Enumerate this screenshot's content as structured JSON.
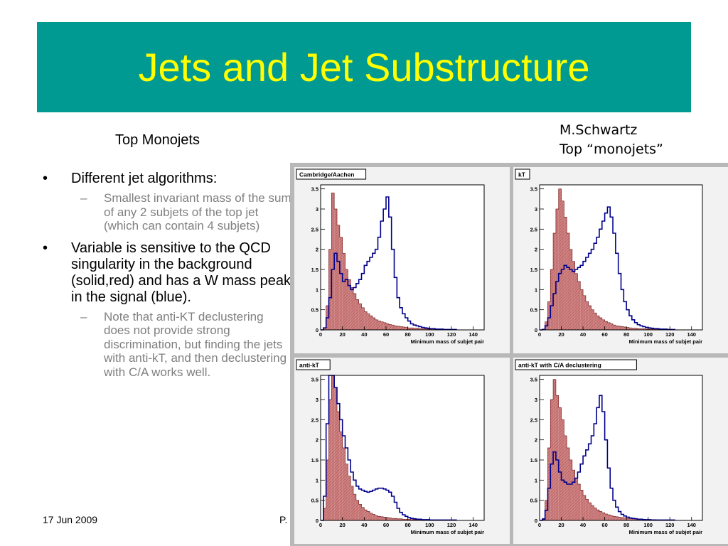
{
  "slide": {
    "title": "Jets and Jet Substructure",
    "subtitle": "Top Monojets",
    "credit_line1": "M.Schwartz",
    "credit_line2": "Top “monojets”",
    "footer_date": "17 Jun 2009",
    "footer_page": "P.",
    "colors": {
      "title_bg": "#009a92",
      "title_text": "#ffff00",
      "background_fill": "#cd7f7f",
      "signal_line": "#00008b"
    }
  },
  "bullets": {
    "b1": "Different jet algorithms:",
    "b1_sub": "Smallest invariant mass of the sum of any 2 subjets of the top jet (which can contain 4 subjets)",
    "b2": "Variable is sensitive to the QCD singularity in the background (solid,red) and has a W mass peak in the signal (blue).",
    "b2_sub": "Note that anti-KT declustering does not provide strong discrimination, but finding the jets with anti-kT, and then declustering with C/A works well.",
    "bullet_char": "•",
    "dash_char": "–"
  },
  "chart_data": [
    {
      "type": "histogram",
      "label": "Cambridge/Aachen",
      "xlabel": "Minimum mass of subjet pair",
      "xlim": [
        0,
        150
      ],
      "ylim": [
        0,
        3.6
      ],
      "xticks": [
        0,
        20,
        40,
        60,
        80,
        100,
        120,
        140
      ],
      "yticks": [
        0,
        0.5,
        1,
        1.5,
        2,
        2.5,
        3,
        3.5
      ],
      "bin_width": 2.5,
      "background": [
        0,
        0.05,
        0.6,
        2.0,
        3.4,
        3.0,
        2.6,
        2.3,
        1.9,
        1.5,
        1.25,
        1.05,
        0.9,
        0.75,
        0.65,
        0.55,
        0.45,
        0.4,
        0.35,
        0.3,
        0.25,
        0.22,
        0.2,
        0.18,
        0.15,
        0.13,
        0.12,
        0.1,
        0.09,
        0.08,
        0.07,
        0.06,
        0.05,
        0.05,
        0.04,
        0.04,
        0.03,
        0.03,
        0.03,
        0.02,
        0.02,
        0.02,
        0.02,
        0.01,
        0.01,
        0.01,
        0.01,
        0.01,
        0.01,
        0.01
      ],
      "signal": [
        0,
        0.05,
        0.3,
        0.8,
        1.5,
        1.9,
        1.7,
        1.4,
        1.2,
        1.25,
        1.1,
        1.0,
        1.05,
        1.15,
        1.25,
        1.4,
        1.6,
        1.7,
        1.8,
        1.9,
        2.0,
        2.3,
        2.7,
        3.0,
        3.3,
        2.8,
        2.0,
        1.3,
        0.8,
        0.55,
        0.4,
        0.3,
        0.22,
        0.15,
        0.12,
        0.1,
        0.08,
        0.06,
        0.05,
        0.04,
        0.03,
        0.03,
        0.02,
        0.02,
        0.02,
        0.01,
        0.01,
        0.01,
        0.01,
        0.01
      ]
    },
    {
      "type": "histogram",
      "label": "kT",
      "xlabel": "Minimum mass of subjet pair",
      "xlim": [
        0,
        150
      ],
      "ylim": [
        0,
        3.6
      ],
      "xticks": [
        0,
        20,
        40,
        60,
        80,
        100,
        120,
        140
      ],
      "yticks": [
        0,
        0.5,
        1,
        1.5,
        2,
        2.5,
        3,
        3.5
      ],
      "bin_width": 2.5,
      "background": [
        0,
        0.02,
        0.2,
        0.7,
        1.5,
        2.4,
        3.0,
        3.5,
        3.2,
        2.8,
        2.4,
        2.0,
        1.7,
        1.4,
        1.2,
        1.0,
        0.85,
        0.7,
        0.6,
        0.5,
        0.42,
        0.35,
        0.3,
        0.25,
        0.21,
        0.18,
        0.15,
        0.12,
        0.1,
        0.09,
        0.08,
        0.07,
        0.06,
        0.05,
        0.04,
        0.04,
        0.03,
        0.03,
        0.03,
        0.02,
        0.02,
        0.02,
        0.02,
        0.01,
        0.01,
        0.01,
        0.01,
        0.01,
        0.01,
        0.01
      ],
      "signal": [
        0,
        0.01,
        0.1,
        0.3,
        0.6,
        0.9,
        1.2,
        1.4,
        1.5,
        1.6,
        1.55,
        1.5,
        1.45,
        1.5,
        1.55,
        1.6,
        1.7,
        1.8,
        1.9,
        2.0,
        2.15,
        2.3,
        2.5,
        2.7,
        2.9,
        3.05,
        2.8,
        2.4,
        1.9,
        1.4,
        1.0,
        0.7,
        0.5,
        0.35,
        0.25,
        0.18,
        0.13,
        0.1,
        0.08,
        0.06,
        0.05,
        0.04,
        0.03,
        0.03,
        0.02,
        0.02,
        0.02,
        0.01,
        0.01,
        0.01
      ]
    },
    {
      "type": "histogram",
      "label": "anti-kT",
      "xlabel": "Minimum mass of subjet pair",
      "xlim": [
        0,
        150
      ],
      "ylim": [
        0,
        3.6
      ],
      "xticks": [
        0,
        20,
        40,
        60,
        80,
        100,
        120,
        140
      ],
      "yticks": [
        0,
        0.5,
        1,
        1.5,
        2,
        2.5,
        3,
        3.5
      ],
      "bin_width": 2.5,
      "background": [
        0,
        0.3,
        1.5,
        3.0,
        3.9,
        3.3,
        2.7,
        2.2,
        1.8,
        1.4,
        1.1,
        0.85,
        0.65,
        0.5,
        0.4,
        0.32,
        0.26,
        0.22,
        0.18,
        0.15,
        0.12,
        0.1,
        0.09,
        0.08,
        0.07,
        0.06,
        0.05,
        0.05,
        0.04,
        0.04,
        0.03,
        0.03,
        0.03,
        0.02,
        0.02,
        0.02,
        0.02,
        0.01,
        0.01,
        0.01,
        0.01,
        0.01,
        0.01,
        0.01,
        0.01,
        0.01,
        0.01,
        0.01,
        0.01,
        0.01
      ],
      "signal": [
        0,
        0.6,
        2.4,
        3.9,
        3.6,
        3.3,
        2.9,
        2.5,
        2.1,
        1.8,
        1.5,
        1.2,
        1.0,
        0.85,
        0.78,
        0.75,
        0.72,
        0.7,
        0.72,
        0.75,
        0.78,
        0.8,
        0.8,
        0.78,
        0.75,
        0.7,
        0.6,
        0.45,
        0.3,
        0.2,
        0.14,
        0.1,
        0.07,
        0.05,
        0.04,
        0.03,
        0.03,
        0.02,
        0.02,
        0.02,
        0.01,
        0.01,
        0.01,
        0.01,
        0.01,
        0.01,
        0.01,
        0.01,
        0.01,
        0.01
      ]
    },
    {
      "type": "histogram",
      "label": "anti-kT with C/A declustering",
      "xlabel": "Minimum mass of subjet pair",
      "xlim": [
        0,
        150
      ],
      "ylim": [
        0,
        3.6
      ],
      "xticks": [
        0,
        20,
        40,
        60,
        80,
        100,
        120,
        140
      ],
      "yticks": [
        0,
        0.5,
        1,
        1.5,
        2,
        2.5,
        3,
        3.5
      ],
      "bin_width": 2.5,
      "background": [
        0,
        0.05,
        0.5,
        1.8,
        3.0,
        3.5,
        3.1,
        2.8,
        2.5,
        2.1,
        1.8,
        1.5,
        1.25,
        1.05,
        0.9,
        0.75,
        0.62,
        0.52,
        0.44,
        0.37,
        0.31,
        0.26,
        0.22,
        0.19,
        0.16,
        0.14,
        0.12,
        0.1,
        0.09,
        0.08,
        0.07,
        0.06,
        0.05,
        0.05,
        0.04,
        0.04,
        0.03,
        0.03,
        0.03,
        0.02,
        0.02,
        0.02,
        0.02,
        0.01,
        0.01,
        0.01,
        0.01,
        0.01,
        0.01,
        0.01
      ],
      "signal": [
        0,
        0.03,
        0.25,
        0.8,
        1.4,
        1.7,
        1.5,
        1.2,
        1.0,
        0.95,
        0.9,
        0.9,
        0.95,
        1.05,
        1.2,
        1.4,
        1.6,
        1.75,
        1.9,
        2.1,
        2.4,
        2.8,
        3.1,
        2.7,
        2.0,
        1.3,
        0.8,
        0.5,
        0.33,
        0.22,
        0.15,
        0.11,
        0.08,
        0.06,
        0.05,
        0.04,
        0.03,
        0.03,
        0.02,
        0.02,
        0.02,
        0.01,
        0.01,
        0.01,
        0.01,
        0.01,
        0.01,
        0.01,
        0.01,
        0.01
      ]
    }
  ]
}
